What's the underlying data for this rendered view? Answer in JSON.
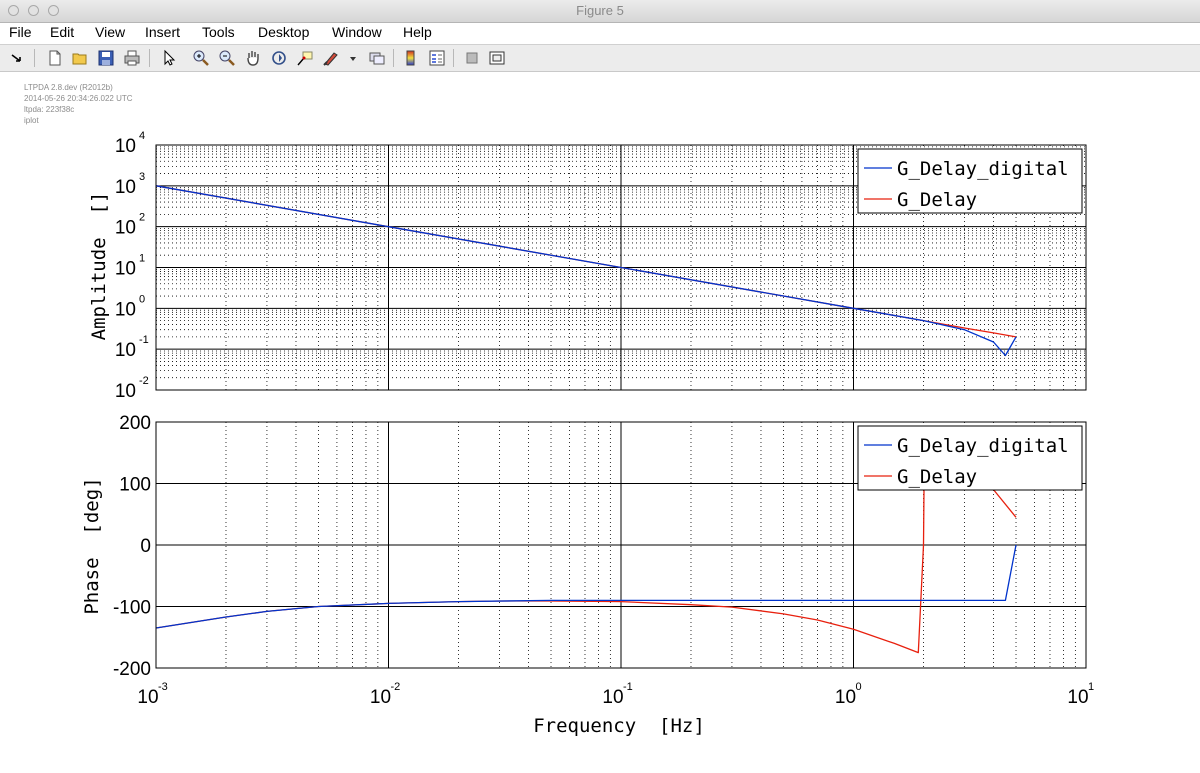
{
  "window": {
    "title": "Figure 5"
  },
  "menu": [
    "File",
    "Edit",
    "View",
    "Insert",
    "Tools",
    "Desktop",
    "Window",
    "Help"
  ],
  "toolbar": {
    "icons": [
      "dock-arrow-icon",
      "new-figure-icon",
      "open-file-icon",
      "save-icon",
      "print-icon",
      "select-arrow-icon",
      "zoom-in-icon",
      "zoom-out-icon",
      "pan-hand-icon",
      "rotate-3d-icon",
      "data-cursor-icon",
      "brush-icon",
      "link-plot-icon",
      "colorbar-icon",
      "legend-icon",
      "hide-plot-tools-icon",
      "show-plot-tools-icon"
    ]
  },
  "meta": [
    "LTPDA 2.8.dev (R2012b)",
    "2014-05-26 20:34:26.022 UTC",
    "ltpda: 223f38c",
    "iplot"
  ],
  "colors": {
    "G_Delay_digital": "#0033cc",
    "G_Delay": "#e8200e"
  },
  "chart_data": [
    {
      "type": "line",
      "name": "amplitude",
      "xscale": "log",
      "yscale": "log",
      "xlim": [
        0.001,
        10
      ],
      "ylim": [
        0.01,
        10000
      ],
      "ylabel": "Amplitude  []",
      "x_tick_labels": [
        "10^-3",
        "10^-2",
        "10^-1",
        "10^0",
        "10^1"
      ],
      "y_tick_labels": [
        "10^-2",
        "10^-1",
        "10^0",
        "10^1",
        "10^2",
        "10^3",
        "10^4"
      ],
      "grid": "major and minor",
      "legend": {
        "placement": "top-right",
        "entries": [
          "G_Delay_digital",
          "G_Delay"
        ]
      },
      "series": [
        {
          "name": "G_Delay_digital",
          "x": [
            0.001,
            0.01,
            0.1,
            0.5,
            1,
            2,
            3,
            4,
            4.5,
            5
          ],
          "y": [
            1000,
            100,
            10,
            2,
            1,
            0.5,
            0.3,
            0.15,
            0.07,
            0.2
          ]
        },
        {
          "name": "G_Delay",
          "x": [
            0.001,
            0.01,
            0.1,
            1,
            2,
            3,
            4,
            5
          ],
          "y": [
            1000,
            100,
            10,
            1,
            0.5,
            0.33,
            0.25,
            0.2
          ]
        }
      ]
    },
    {
      "type": "line",
      "name": "phase",
      "xscale": "log",
      "yscale": "linear",
      "xlim": [
        0.001,
        10
      ],
      "ylim": [
        -200,
        200
      ],
      "xlabel": "Frequency  [Hz]",
      "ylabel": "Phase  [deg]",
      "x_tick_labels": [
        "10^-3",
        "10^-2",
        "10^-1",
        "10^0",
        "10^1"
      ],
      "y_tick_labels": [
        "-200",
        "-100",
        "0",
        "100",
        "200"
      ],
      "grid": "major and minor (x)",
      "legend": {
        "placement": "top-right",
        "entries": [
          "G_Delay_digital",
          "G_Delay"
        ]
      },
      "series": [
        {
          "name": "G_Delay_digital",
          "x": [
            0.001,
            0.002,
            0.003,
            0.005,
            0.01,
            0.02,
            0.05,
            0.1,
            0.2,
            0.5,
            1,
            2,
            3,
            4,
            4.5,
            5
          ],
          "y": [
            -135,
            -117,
            -108,
            -100,
            -95,
            -92,
            -90,
            -90,
            -90,
            -90,
            -90,
            -90,
            -90,
            -90,
            -90,
            0
          ]
        },
        {
          "name": "G_Delay",
          "x": [
            0.001,
            0.002,
            0.003,
            0.005,
            0.01,
            0.02,
            0.03,
            0.05,
            0.1,
            0.2,
            0.3,
            0.5,
            0.7,
            1,
            1.5,
            1.9,
            2.0,
            2.02,
            3,
            4,
            5
          ],
          "y": [
            -135,
            -117,
            -108,
            -100,
            -95,
            -92,
            -91,
            -91,
            -92,
            -97,
            -101,
            -112,
            -122,
            -137,
            -160,
            -175,
            0,
            180,
            120,
            90,
            45
          ]
        }
      ]
    }
  ]
}
